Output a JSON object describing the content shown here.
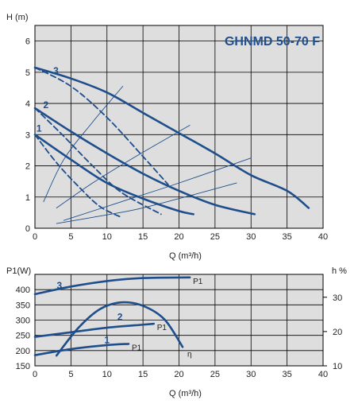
{
  "colors": {
    "plot_bg": "#dedede",
    "grid": "#000000",
    "curve": "#1f4e8c",
    "text": "#222222"
  },
  "chart_data": [
    {
      "type": "line",
      "title": "GHNMD 50-70 F",
      "xlabel": "Q (m³/h)",
      "ylabel": "H (m)",
      "xlim": [
        0,
        40
      ],
      "ylim": [
        0,
        6.5
      ],
      "xticks": [
        "0",
        "5",
        "10",
        "15",
        "20",
        "25",
        "30",
        "35",
        "40"
      ],
      "yticks": [
        "0",
        "1",
        "2",
        "3",
        "4",
        "5",
        "6"
      ],
      "grid": true,
      "curve_labels": [
        "1",
        "2",
        "3"
      ],
      "series": [
        {
          "style": "solid",
          "x": [
            0,
            5,
            10,
            15,
            20,
            22
          ],
          "y": [
            3.0,
            2.2,
            1.45,
            0.95,
            0.55,
            0.45
          ]
        },
        {
          "style": "solid",
          "x": [
            0,
            5,
            10,
            15,
            20,
            25,
            30.5
          ],
          "y": [
            3.85,
            3.1,
            2.4,
            1.75,
            1.2,
            0.75,
            0.45
          ]
        },
        {
          "style": "solid",
          "x": [
            0,
            5,
            10,
            15,
            20,
            25,
            30,
            35,
            38
          ],
          "y": [
            5.15,
            4.8,
            4.35,
            3.7,
            3.05,
            2.4,
            1.7,
            1.2,
            0.65
          ]
        },
        {
          "style": "dashed",
          "x": [
            0,
            3,
            6,
            9,
            12
          ],
          "y": [
            3.0,
            2.1,
            1.35,
            0.7,
            0.35
          ]
        },
        {
          "style": "dashed",
          "x": [
            0,
            4,
            8,
            12,
            17.5
          ],
          "y": [
            3.85,
            2.95,
            2.0,
            1.15,
            0.45
          ]
        },
        {
          "style": "dashed",
          "x": [
            0,
            5,
            10,
            15,
            18.5
          ],
          "y": [
            5.15,
            4.55,
            3.55,
            2.3,
            1.4
          ]
        },
        {
          "style": "thin",
          "x": [
            1.2,
            4,
            8,
            12.2
          ],
          "y": [
            0.85,
            2.2,
            3.4,
            4.55
          ]
        },
        {
          "style": "thin",
          "x": [
            3,
            8,
            14,
            21.5
          ],
          "y": [
            0.65,
            1.45,
            2.3,
            3.3
          ]
        },
        {
          "style": "thin",
          "x": [
            4,
            12,
            20,
            30
          ],
          "y": [
            0.25,
            0.85,
            1.45,
            2.25
          ]
        },
        {
          "style": "thin",
          "x": [
            3,
            8,
            14,
            20,
            28
          ],
          "y": [
            0.15,
            0.35,
            0.6,
            0.95,
            1.45
          ]
        }
      ]
    },
    {
      "type": "line",
      "xlabel": "Q (m³/h)",
      "ylabel": "P1(W)",
      "y2label": "h %",
      "xlim": [
        0,
        40
      ],
      "ylim": [
        150,
        450
      ],
      "y2lim": [
        10,
        36.67
      ],
      "xticks": [
        "0",
        "5",
        "10",
        "15",
        "20",
        "25",
        "30",
        "35",
        "40"
      ],
      "yticks": [
        "150",
        "200",
        "250",
        "300",
        "350",
        "400"
      ],
      "y2ticks": [
        "10",
        "20",
        "30"
      ],
      "grid": true,
      "curve_labels": [
        "1",
        "2",
        "3"
      ],
      "series_labels": [
        "P1",
        "P1",
        "P1",
        "η"
      ],
      "series": [
        {
          "name": "P1",
          "style": "solid",
          "x": [
            0,
            5,
            10,
            13
          ],
          "y": [
            185,
            205,
            218,
            222
          ]
        },
        {
          "name": "P1",
          "style": "solid",
          "x": [
            0,
            5,
            10,
            15,
            16.5
          ],
          "y": [
            245,
            260,
            275,
            285,
            288
          ]
        },
        {
          "name": "P1",
          "style": "solid",
          "x": [
            0,
            5,
            10,
            15,
            21.5
          ],
          "y": [
            385,
            410,
            428,
            438,
            440
          ]
        },
        {
          "name": "η",
          "style": "solid",
          "axis": "y2",
          "x": [
            3,
            6,
            9,
            12,
            15,
            18,
            20.5
          ],
          "y": [
            13,
            21,
            26.5,
            28.5,
            27.5,
            23.5,
            15.5
          ]
        }
      ]
    }
  ]
}
